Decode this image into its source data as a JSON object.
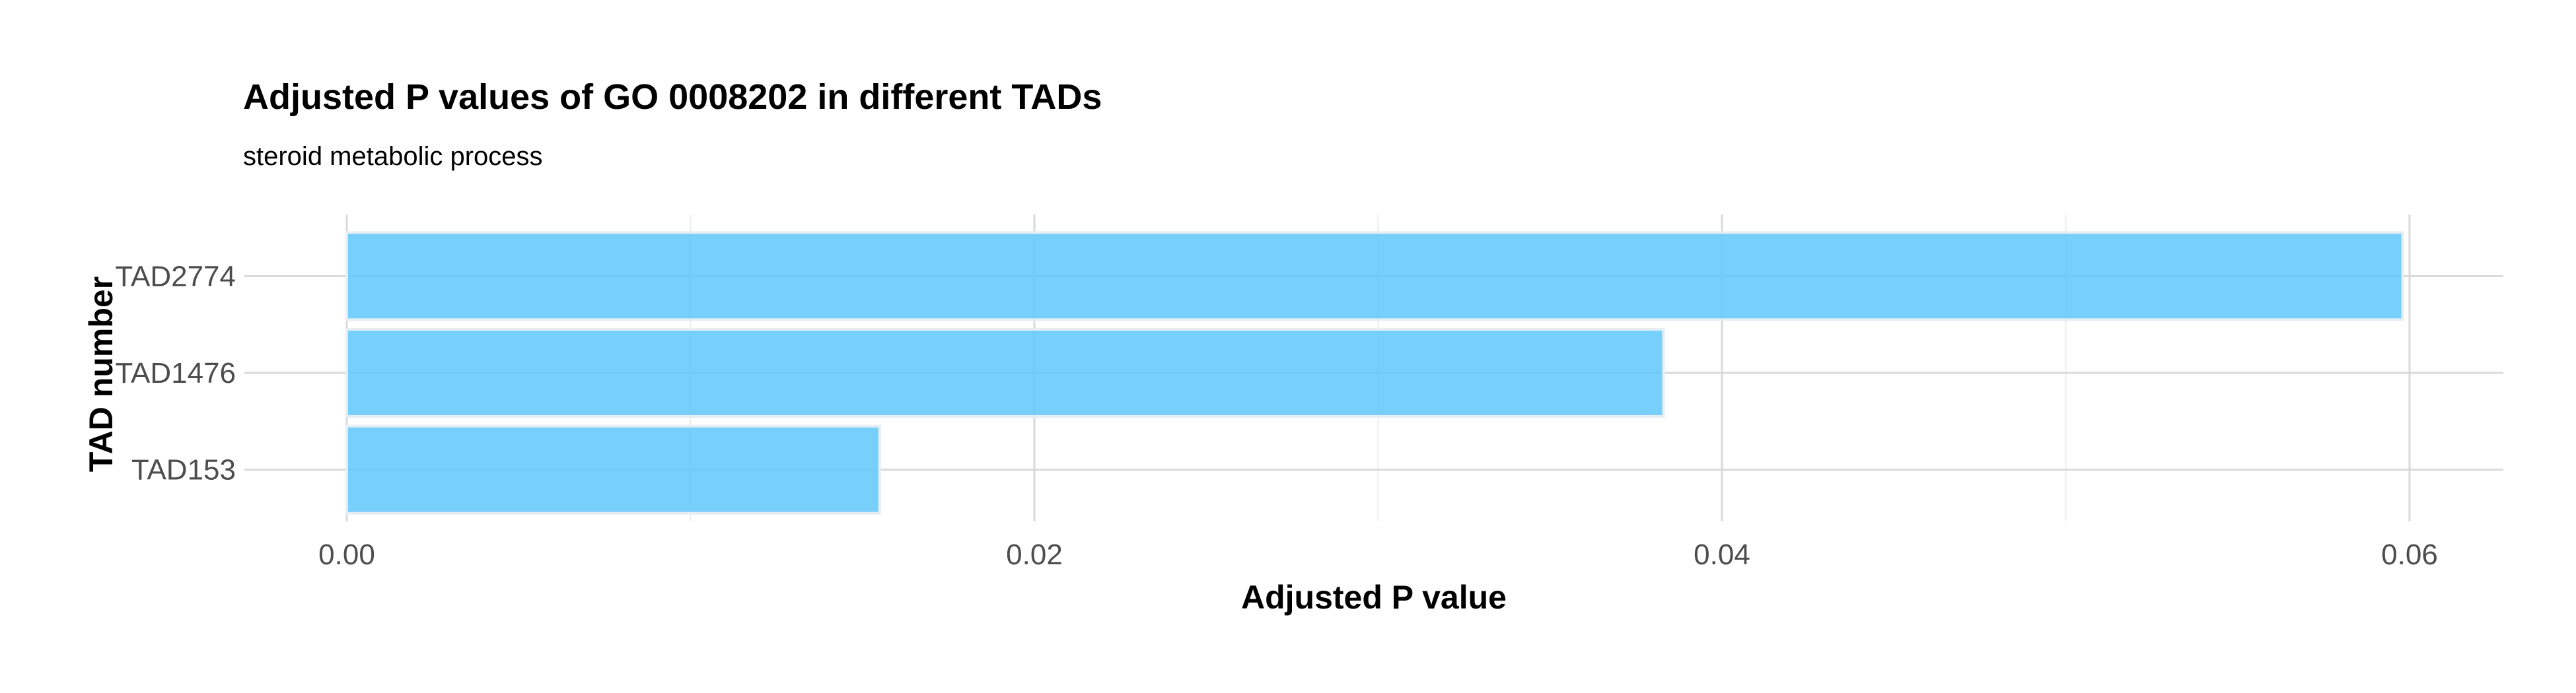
{
  "chart_data": {
    "type": "bar",
    "orientation": "horizontal",
    "title": "Adjusted P values of GO 0008202 in different TADs",
    "subtitle": "steroid metabolic process",
    "xlabel": "Adjusted P value",
    "ylabel": "TAD number",
    "categories": [
      "TAD153",
      "TAD1476",
      "TAD2774"
    ],
    "values": [
      0.0155,
      0.0383,
      0.0598
    ],
    "xlim": [
      0,
      0.06
    ],
    "x_ticks": [
      {
        "value": 0.0,
        "label": "0.00"
      },
      {
        "value": 0.02,
        "label": "0.02"
      },
      {
        "value": 0.04,
        "label": "0.04"
      },
      {
        "value": 0.06,
        "label": "0.06"
      }
    ],
    "grid": true,
    "legend": "none",
    "colors": {
      "bar_fill": "#5ec8fa",
      "bar_stroke": "#e6eef3",
      "grid_major": "#d9d9d9",
      "grid_minor": "#ececec"
    }
  }
}
